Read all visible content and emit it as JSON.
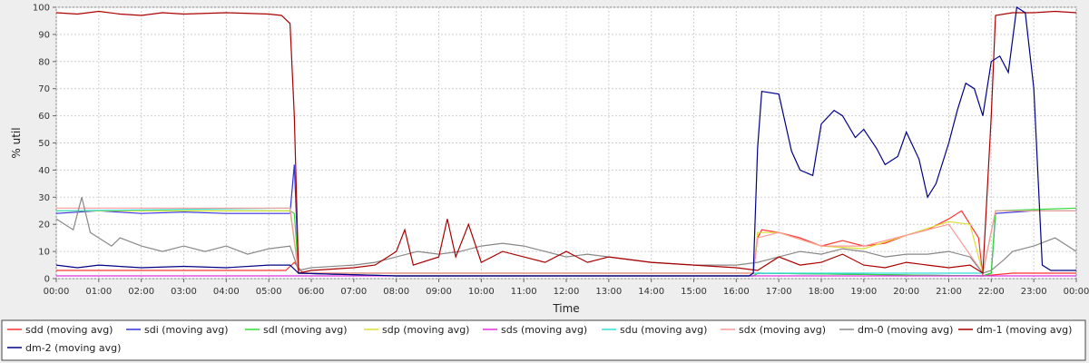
{
  "chart_data": {
    "type": "line",
    "title": "",
    "xlabel": "Time",
    "ylabel": "% util",
    "ylim": [
      0,
      100
    ],
    "yticks": [
      0,
      10,
      20,
      30,
      40,
      50,
      60,
      70,
      80,
      90,
      100
    ],
    "x_ticks": [
      "00:00",
      "01:00",
      "02:00",
      "03:00",
      "04:00",
      "05:00",
      "06:00",
      "07:00",
      "08:00",
      "09:00",
      "10:00",
      "11:00",
      "12:00",
      "13:00",
      "14:00",
      "15:00",
      "16:00",
      "17:00",
      "18:00",
      "19:00",
      "20:00",
      "21:00",
      "22:00",
      "23:00",
      "00:00"
    ],
    "x_range_hours": [
      0,
      24
    ],
    "grid": true,
    "legend_position": "bottom",
    "series": [
      {
        "name": "sdd (moving avg)",
        "color": "#ff3333",
        "points": [
          [
            0,
            3
          ],
          [
            5.4,
            3
          ],
          [
            5.6,
            6
          ],
          [
            5.8,
            2
          ],
          [
            8,
            2
          ],
          [
            12,
            2
          ],
          [
            16.4,
            2
          ],
          [
            16.5,
            15
          ],
          [
            16.6,
            18
          ],
          [
            17,
            17
          ],
          [
            17.5,
            15
          ],
          [
            18,
            12
          ],
          [
            18.5,
            14
          ],
          [
            19,
            12
          ],
          [
            19.5,
            13
          ],
          [
            20,
            16
          ],
          [
            20.5,
            18
          ],
          [
            21,
            22
          ],
          [
            21.3,
            25
          ],
          [
            21.5,
            20
          ],
          [
            21.7,
            15
          ],
          [
            21.8,
            1
          ],
          [
            22.5,
            2
          ],
          [
            24,
            2
          ]
        ]
      },
      {
        "name": "sdi (moving avg)",
        "color": "#3333dd",
        "points": [
          [
            0,
            24
          ],
          [
            1,
            25
          ],
          [
            2,
            24
          ],
          [
            3,
            24.5
          ],
          [
            4,
            24
          ],
          [
            5,
            24
          ],
          [
            5.5,
            24
          ],
          [
            5.6,
            42
          ],
          [
            5.7,
            2
          ],
          [
            8,
            1
          ],
          [
            12,
            1
          ],
          [
            16,
            1
          ],
          [
            16.4,
            1
          ],
          [
            16.5,
            2
          ],
          [
            21.8,
            1
          ],
          [
            22,
            2
          ],
          [
            22.1,
            24
          ],
          [
            23,
            25
          ],
          [
            24,
            25
          ]
        ]
      },
      {
        "name": "sdl (moving avg)",
        "color": "#33dd33",
        "points": [
          [
            0,
            25
          ],
          [
            5.5,
            25
          ],
          [
            5.6,
            24
          ],
          [
            5.7,
            2
          ],
          [
            8,
            1
          ],
          [
            12,
            1
          ],
          [
            16.4,
            1
          ],
          [
            16.5,
            2
          ],
          [
            21.8,
            1
          ],
          [
            22,
            2
          ],
          [
            22.1,
            25
          ],
          [
            24,
            26
          ]
        ]
      },
      {
        "name": "sdp (moving avg)",
        "color": "#dddd33",
        "points": [
          [
            0,
            25
          ],
          [
            5.5,
            25
          ],
          [
            5.7,
            2
          ],
          [
            16.4,
            2
          ],
          [
            16.5,
            17
          ],
          [
            17,
            17
          ],
          [
            18,
            12
          ],
          [
            19,
            11
          ],
          [
            20,
            16
          ],
          [
            21,
            21
          ],
          [
            21.5,
            20
          ],
          [
            21.8,
            2
          ],
          [
            22.1,
            25
          ],
          [
            24,
            25
          ]
        ]
      },
      {
        "name": "sds (moving avg)",
        "color": "#dd33dd",
        "points": [
          [
            0,
            1
          ],
          [
            5.5,
            1
          ],
          [
            8,
            1
          ],
          [
            16,
            1
          ],
          [
            22,
            1
          ],
          [
            24,
            1
          ]
        ]
      },
      {
        "name": "sdu (moving avg)",
        "color": "#33dddd",
        "points": [
          [
            0,
            25
          ],
          [
            5.5,
            26
          ],
          [
            5.7,
            2
          ],
          [
            8,
            2
          ],
          [
            12,
            2
          ],
          [
            16.4,
            2
          ],
          [
            21.8,
            2
          ],
          [
            22.1,
            25
          ],
          [
            24,
            25
          ]
        ]
      },
      {
        "name": "sdx (moving avg)",
        "color": "#ff9999",
        "points": [
          [
            0,
            26
          ],
          [
            5.5,
            26
          ],
          [
            5.7,
            2
          ],
          [
            8,
            2
          ],
          [
            16.4,
            2
          ],
          [
            16.5,
            15
          ],
          [
            17,
            17
          ],
          [
            18,
            12
          ],
          [
            19,
            12
          ],
          [
            20,
            16
          ],
          [
            21,
            20
          ],
          [
            21.8,
            2
          ],
          [
            22.1,
            25
          ],
          [
            24,
            25
          ]
        ]
      },
      {
        "name": "dm-0 (moving avg)",
        "color": "#888888",
        "points": [
          [
            0,
            22
          ],
          [
            0.4,
            18
          ],
          [
            0.6,
            30
          ],
          [
            0.8,
            17
          ],
          [
            1,
            15
          ],
          [
            1.3,
            12
          ],
          [
            1.5,
            15
          ],
          [
            2,
            12
          ],
          [
            2.5,
            10
          ],
          [
            3,
            12
          ],
          [
            3.5,
            10
          ],
          [
            4,
            12
          ],
          [
            4.5,
            9
          ],
          [
            5,
            11
          ],
          [
            5.5,
            12
          ],
          [
            5.7,
            3
          ],
          [
            6,
            4
          ],
          [
            7,
            5
          ],
          [
            7.5,
            6
          ],
          [
            8,
            8
          ],
          [
            8.5,
            10
          ],
          [
            9,
            9
          ],
          [
            9.5,
            10
          ],
          [
            10,
            12
          ],
          [
            10.5,
            13
          ],
          [
            11,
            12
          ],
          [
            11.5,
            10
          ],
          [
            12,
            8
          ],
          [
            12.5,
            9
          ],
          [
            13,
            8
          ],
          [
            13.5,
            7
          ],
          [
            14,
            6
          ],
          [
            15,
            5
          ],
          [
            16,
            5
          ],
          [
            16.5,
            6
          ],
          [
            17,
            8
          ],
          [
            17.5,
            10
          ],
          [
            18,
            9
          ],
          [
            18.5,
            11
          ],
          [
            19,
            10
          ],
          [
            19.5,
            8
          ],
          [
            20,
            9
          ],
          [
            20.5,
            9
          ],
          [
            21,
            10
          ],
          [
            21.5,
            8
          ],
          [
            21.8,
            2
          ],
          [
            22,
            3
          ],
          [
            22.3,
            7
          ],
          [
            22.5,
            10
          ],
          [
            23,
            12
          ],
          [
            23.5,
            15
          ],
          [
            24,
            10
          ]
        ]
      },
      {
        "name": "dm-1 (moving avg)",
        "color": "#aa0000",
        "points": [
          [
            0,
            98
          ],
          [
            0.5,
            97.5
          ],
          [
            1,
            98.5
          ],
          [
            1.5,
            97.5
          ],
          [
            2,
            97
          ],
          [
            2.5,
            98
          ],
          [
            3,
            97.5
          ],
          [
            4,
            98
          ],
          [
            5,
            97.5
          ],
          [
            5.3,
            97
          ],
          [
            5.5,
            94
          ],
          [
            5.6,
            60
          ],
          [
            5.7,
            2
          ],
          [
            6,
            3
          ],
          [
            7,
            4
          ],
          [
            7.5,
            5
          ],
          [
            8,
            10
          ],
          [
            8.2,
            18
          ],
          [
            8.4,
            5
          ],
          [
            9,
            8
          ],
          [
            9.2,
            22
          ],
          [
            9.4,
            8
          ],
          [
            9.7,
            20
          ],
          [
            10,
            6
          ],
          [
            10.5,
            10
          ],
          [
            11,
            8
          ],
          [
            11.5,
            6
          ],
          [
            12,
            10
          ],
          [
            12.5,
            6
          ],
          [
            13,
            8
          ],
          [
            14,
            6
          ],
          [
            15,
            5
          ],
          [
            16,
            4
          ],
          [
            16.5,
            3
          ],
          [
            17,
            8
          ],
          [
            17.5,
            5
          ],
          [
            18,
            6
          ],
          [
            18.5,
            9
          ],
          [
            19,
            5
          ],
          [
            19.5,
            4
          ],
          [
            20,
            6
          ],
          [
            20.5,
            5
          ],
          [
            21,
            4
          ],
          [
            21.5,
            5
          ],
          [
            21.8,
            2
          ],
          [
            22,
            60
          ],
          [
            22.1,
            97
          ],
          [
            22.5,
            98
          ],
          [
            23,
            98
          ],
          [
            23.5,
            98.5
          ],
          [
            24,
            98
          ]
        ]
      },
      {
        "name": "dm-2 (moving avg)",
        "color": "#000088",
        "points": [
          [
            0,
            5
          ],
          [
            0.5,
            4
          ],
          [
            1,
            5
          ],
          [
            2,
            4
          ],
          [
            3,
            4.5
          ],
          [
            4,
            4
          ],
          [
            5,
            5
          ],
          [
            5.5,
            5
          ],
          [
            5.7,
            2
          ],
          [
            8,
            1
          ],
          [
            12,
            1
          ],
          [
            16.3,
            1
          ],
          [
            16.4,
            2
          ],
          [
            16.5,
            48
          ],
          [
            16.6,
            69
          ],
          [
            17,
            68
          ],
          [
            17.3,
            47
          ],
          [
            17.5,
            40
          ],
          [
            17.8,
            38
          ],
          [
            18,
            57
          ],
          [
            18.3,
            62
          ],
          [
            18.5,
            60
          ],
          [
            18.8,
            52
          ],
          [
            19,
            55
          ],
          [
            19.3,
            48
          ],
          [
            19.5,
            42
          ],
          [
            19.8,
            45
          ],
          [
            20,
            54
          ],
          [
            20.3,
            44
          ],
          [
            20.5,
            30
          ],
          [
            20.7,
            35
          ],
          [
            21,
            50
          ],
          [
            21.2,
            62
          ],
          [
            21.4,
            72
          ],
          [
            21.6,
            70
          ],
          [
            21.8,
            60
          ],
          [
            22,
            80
          ],
          [
            22.2,
            82
          ],
          [
            22.4,
            76
          ],
          [
            22.6,
            100
          ],
          [
            22.8,
            98
          ],
          [
            23,
            70
          ],
          [
            23.2,
            5
          ],
          [
            23.4,
            3
          ],
          [
            24,
            3
          ]
        ]
      }
    ]
  }
}
